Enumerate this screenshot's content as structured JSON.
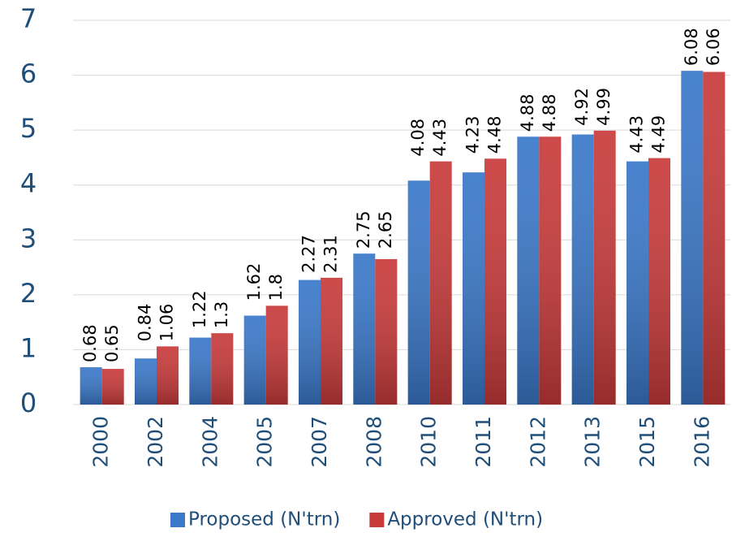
{
  "chart_data": {
    "type": "bar",
    "categories": [
      "2000",
      "2002",
      "2004",
      "2005",
      "2007",
      "2008",
      "2010",
      "2011",
      "2012",
      "2013",
      "2015",
      "2016"
    ],
    "series": [
      {
        "name": "Proposed (N'trn)",
        "color": "#3a78c9",
        "values": [
          0.68,
          0.84,
          1.22,
          1.62,
          2.27,
          2.75,
          4.08,
          4.23,
          4.88,
          4.92,
          4.43,
          6.08
        ]
      },
      {
        "name": "Approved (N'trn)",
        "color": "#c83a3a",
        "values": [
          0.65,
          1.06,
          1.3,
          1.8,
          2.31,
          2.65,
          4.43,
          4.48,
          4.88,
          4.99,
          4.49,
          6.06
        ]
      }
    ],
    "ylim": [
      0,
      7
    ],
    "yticks": [
      0,
      1,
      2,
      3,
      4,
      5,
      6,
      7
    ],
    "grid": true,
    "legend": "bottom"
  }
}
